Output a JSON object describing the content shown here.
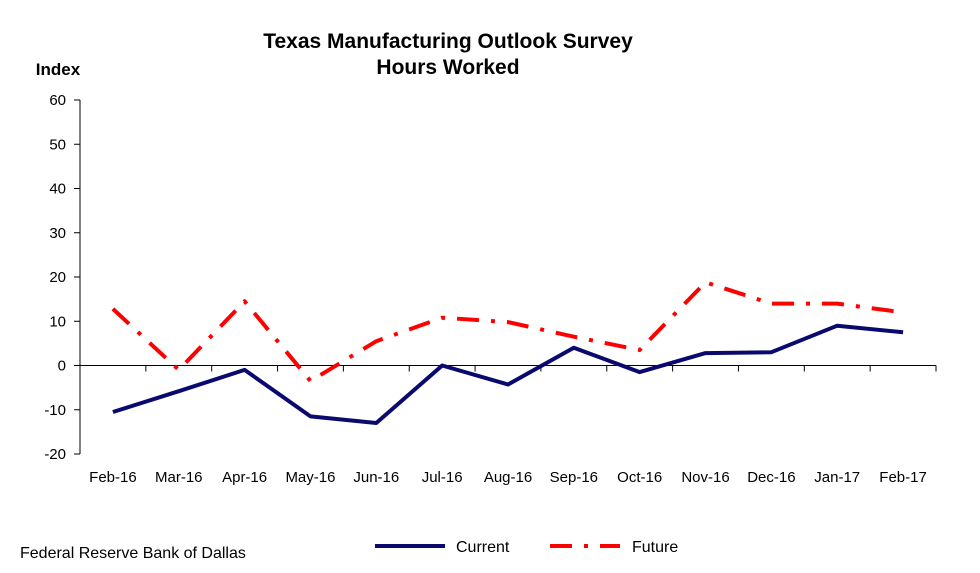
{
  "chart_data": {
    "type": "line",
    "title": "Texas Manufacturing Outlook Survey",
    "subtitle": "Hours Worked",
    "ylabel": "Index",
    "xlabel": "",
    "ylim": [
      -20,
      60
    ],
    "yticks": [
      -20,
      -10,
      0,
      10,
      20,
      30,
      40,
      50,
      60
    ],
    "categories": [
      "Feb-16",
      "Mar-16",
      "Apr-16",
      "May-16",
      "Jun-16",
      "Jul-16",
      "Aug-16",
      "Sep-16",
      "Oct-16",
      "Nov-16",
      "Dec-16",
      "Jan-17",
      "Feb-17"
    ],
    "series": [
      {
        "name": "Current",
        "color": "#0a0a6e",
        "style": "solid",
        "values": [
          -10.5,
          -5.8,
          -1.0,
          -11.5,
          -13.0,
          0.0,
          -4.3,
          4.0,
          -1.5,
          2.8,
          3.0,
          9.0,
          7.5
        ]
      },
      {
        "name": "Future",
        "color": "#ff0000",
        "style": "dash-dot",
        "values": [
          12.8,
          -1.0,
          14.5,
          -3.5,
          5.5,
          10.8,
          9.8,
          6.5,
          3.5,
          18.8,
          14.0,
          14.0,
          12.0
        ]
      }
    ],
    "grid": false,
    "legend_position": "bottom"
  },
  "source": "Federal Reserve Bank of Dallas"
}
